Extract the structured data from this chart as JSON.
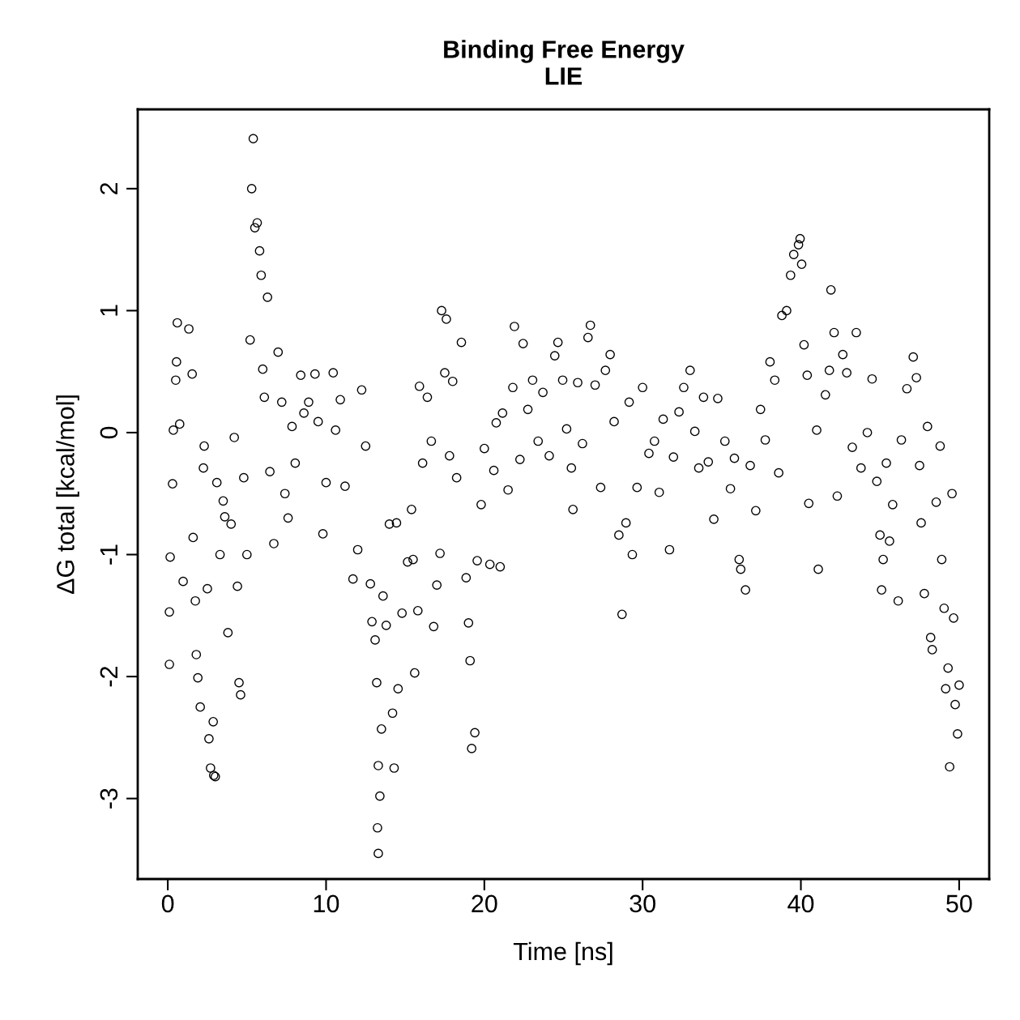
{
  "chart_data": {
    "type": "scatter",
    "title": "Binding Free Energy\nLIE",
    "xlabel": "Time [ns]",
    "ylabel": "ΔG total [kcal/mol]",
    "xlim": [
      -1.9,
      51.9
    ],
    "ylim": [
      -3.66,
      2.65
    ],
    "xticks": [
      0,
      10,
      20,
      30,
      40,
      50
    ],
    "yticks": [
      {
        "value": -3,
        "label": "-3"
      },
      {
        "value": -2,
        "label": "-2"
      },
      {
        "value": -1,
        "label": "-1"
      },
      0,
      1,
      2
    ],
    "grid": false,
    "marker": "circle",
    "series": [
      {
        "color": "#000000",
        "x": [
          0.1,
          0.1,
          0.15,
          0.3,
          0.35,
          0.6,
          0.55,
          0.5,
          0.75,
          0.97,
          1.33,
          1.54,
          1.6,
          1.74,
          1.8,
          1.9,
          2.05,
          2.25,
          2.3,
          2.5,
          2.6,
          2.7,
          2.9,
          3.0,
          2.87,
          3.1,
          3.3,
          3.5,
          3.6,
          3.8,
          4.0,
          4.2,
          4.4,
          4.5,
          4.6,
          4.8,
          5.0,
          5.2,
          5.3,
          5.4,
          5.5,
          5.65,
          5.8,
          5.9,
          6.0,
          6.1,
          6.3,
          6.45,
          6.7,
          6.97,
          7.2,
          7.4,
          7.6,
          7.85,
          8.05,
          8.4,
          8.6,
          8.9,
          9.3,
          9.5,
          9.8,
          10.0,
          10.45,
          10.6,
          10.9,
          11.2,
          11.7,
          12.0,
          12.25,
          12.5,
          12.8,
          12.9,
          13.1,
          13.2,
          13.25,
          13.3,
          13.3,
          13.4,
          13.5,
          13.6,
          13.8,
          14.0,
          14.2,
          14.3,
          14.45,
          14.55,
          14.8,
          15.15,
          15.4,
          15.5,
          15.6,
          15.8,
          15.9,
          16.1,
          16.4,
          16.65,
          16.8,
          17.0,
          17.2,
          17.3,
          17.6,
          17.5,
          17.8,
          18.0,
          18.25,
          18.55,
          18.85,
          19.0,
          19.1,
          19.2,
          19.4,
          19.55,
          19.8,
          20.0,
          20.35,
          20.6,
          20.75,
          21.0,
          21.15,
          21.5,
          21.8,
          21.9,
          22.25,
          22.45,
          22.75,
          23.05,
          23.4,
          23.7,
          24.1,
          24.45,
          24.65,
          24.95,
          25.2,
          25.5,
          25.6,
          25.9,
          26.2,
          26.55,
          26.7,
          27.0,
          27.35,
          27.65,
          27.95,
          28.2,
          28.5,
          28.7,
          28.95,
          29.15,
          29.35,
          29.65,
          30.0,
          30.4,
          30.75,
          31.05,
          31.3,
          31.7,
          31.95,
          32.3,
          32.6,
          33.0,
          33.3,
          33.55,
          33.85,
          34.15,
          34.5,
          34.75,
          35.2,
          35.55,
          35.8,
          36.1,
          36.2,
          36.5,
          36.8,
          37.15,
          37.45,
          37.75,
          38.05,
          38.35,
          38.6,
          38.8,
          39.1,
          39.35,
          39.55,
          39.85,
          39.95,
          40.05,
          40.2,
          40.4,
          40.5,
          41.0,
          41.1,
          41.55,
          41.8,
          41.9,
          42.1,
          42.3,
          42.65,
          42.9,
          43.25,
          43.5,
          43.8,
          44.2,
          44.5,
          44.8,
          45.0,
          45.1,
          45.2,
          45.4,
          45.6,
          45.8,
          46.15,
          46.35,
          46.7,
          47.1,
          47.3,
          47.5,
          47.6,
          47.8,
          48.0,
          48.2,
          48.3,
          48.55,
          48.8,
          48.9,
          49.05,
          49.15,
          49.3,
          49.4,
          49.55,
          49.65,
          49.75,
          49.9,
          50.0
        ],
        "values": [
          -1.47,
          -1.9,
          -1.02,
          -0.42,
          0.02,
          0.9,
          0.58,
          0.43,
          0.07,
          -1.22,
          0.85,
          0.48,
          -0.86,
          -1.38,
          -1.82,
          -2.01,
          -2.25,
          -0.29,
          -0.11,
          -1.28,
          -2.51,
          -2.75,
          -2.81,
          -2.82,
          -2.37,
          -0.41,
          -1.0,
          -0.56,
          -0.69,
          -1.64,
          -0.75,
          -0.04,
          -1.26,
          -2.05,
          -2.15,
          -0.37,
          -1.0,
          0.76,
          2.0,
          2.41,
          1.68,
          1.72,
          1.49,
          1.29,
          0.52,
          0.29,
          1.11,
          -0.32,
          -0.91,
          0.66,
          0.25,
          -0.5,
          -0.7,
          0.05,
          -0.25,
          0.47,
          0.16,
          0.25,
          0.48,
          0.09,
          -0.83,
          -0.41,
          0.49,
          0.02,
          0.27,
          -0.44,
          -1.2,
          -0.96,
          0.35,
          -0.11,
          -1.24,
          -1.55,
          -1.7,
          -2.05,
          -3.24,
          -3.45,
          -2.73,
          -2.98,
          -2.43,
          -1.34,
          -1.58,
          -0.75,
          -2.3,
          -2.75,
          -0.74,
          -2.1,
          -1.48,
          -1.06,
          -0.63,
          -1.04,
          -1.97,
          -1.46,
          0.38,
          -0.25,
          0.29,
          -0.07,
          -1.59,
          -1.25,
          -0.99,
          1.0,
          0.93,
          0.49,
          -0.19,
          0.42,
          -0.37,
          0.74,
          -1.19,
          -1.56,
          -1.87,
          -2.59,
          -2.46,
          -1.05,
          -0.59,
          -0.13,
          -1.08,
          -0.31,
          0.08,
          -1.1,
          0.16,
          -0.47,
          0.37,
          0.87,
          -0.22,
          0.73,
          0.19,
          0.43,
          -0.07,
          0.33,
          -0.19,
          0.63,
          0.74,
          0.43,
          0.03,
          -0.29,
          -0.63,
          0.41,
          -0.09,
          0.78,
          0.88,
          0.39,
          -0.45,
          0.51,
          0.64,
          0.09,
          -0.84,
          -1.49,
          -0.74,
          0.25,
          -1.0,
          -0.45,
          0.37,
          -0.17,
          -0.07,
          -0.49,
          0.11,
          -0.96,
          -0.2,
          0.17,
          0.37,
          0.51,
          0.01,
          -0.29,
          0.29,
          -0.24,
          -0.71,
          0.28,
          -0.07,
          -0.46,
          -0.21,
          -1.04,
          -1.12,
          -1.29,
          -0.27,
          -0.64,
          0.19,
          -0.06,
          0.58,
          0.43,
          -0.33,
          0.96,
          1.0,
          1.29,
          1.46,
          1.54,
          1.59,
          1.38,
          0.72,
          0.47,
          -0.58,
          0.02,
          -1.12,
          0.31,
          0.51,
          1.17,
          0.82,
          -0.52,
          0.64,
          0.49,
          -0.12,
          0.82,
          -0.29,
          0.0,
          0.44,
          -0.4,
          -0.84,
          -1.29,
          -1.04,
          -0.25,
          -0.89,
          -0.59,
          -1.38,
          -0.06,
          0.36,
          0.62,
          0.45,
          -0.27,
          -0.74,
          -1.32,
          0.05,
          -1.68,
          -1.78,
          -0.57,
          -0.11,
          -1.04,
          -1.44,
          -2.1,
          -1.93,
          -2.74,
          -0.5,
          -1.52,
          -2.23,
          -2.47,
          -2.07
        ]
      }
    ]
  }
}
